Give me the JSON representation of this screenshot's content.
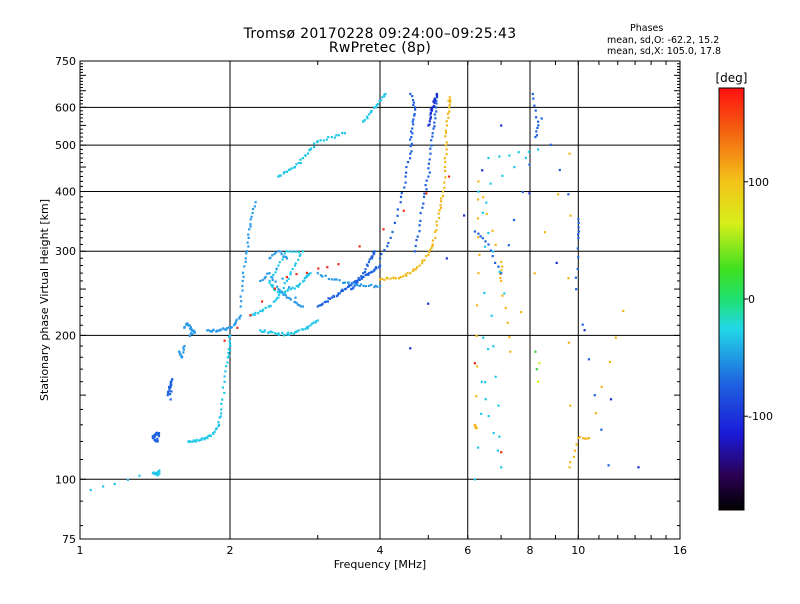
{
  "header": {
    "title": "Tromsø 20170228 09:24:00–09:25:43",
    "subtitle": "RwPretec (8p)"
  },
  "phases": {
    "heading": "Phases",
    "line_o": "mean, sd,O: -62.2, 15.2",
    "line_x": "mean, sd,X: 105.0, 17.8"
  },
  "colorbar": {
    "label": "[deg]",
    "ticks": [
      "100",
      "0",
      "-100"
    ],
    "tick_values": [
      100,
      0,
      -100
    ],
    "range": [
      -180,
      180
    ]
  },
  "colors": {
    "cyan": "#22c8e8",
    "lightblue": "#2a9ae8",
    "blue": "#1f62e0",
    "darkblue": "#1a2fd0",
    "orange": "#f0b81a",
    "darkorange": "#f09010",
    "red": "#ee2c1a",
    "green": "#3fd23a",
    "yellow": "#dce81c",
    "navy": "#0a0a8a"
  },
  "chart_data": {
    "type": "scatter",
    "title": "Tromsø 20170228 09:24:00–09:25:43",
    "subtitle": "RwPretec (8p)",
    "xlabel": "Frequency [MHz]",
    "ylabel": "Stationary phase Virtual Height [km]",
    "xscale": "log",
    "yscale": "log",
    "xlim": [
      1,
      16
    ],
    "ylim": [
      75,
      750
    ],
    "x_ticks": [
      "1",
      "2",
      "4",
      "6",
      "8",
      "10",
      "16"
    ],
    "x_tick_values": [
      1,
      2,
      4,
      6,
      8,
      10,
      16
    ],
    "y_ticks": [
      "75",
      "100",
      "200",
      "300",
      "400",
      "500",
      "600",
      "750"
    ],
    "y_tick_values": [
      75,
      100,
      200,
      300,
      400,
      500,
      600,
      750
    ],
    "grid": true,
    "traces": [
      {
        "color": "cyan",
        "points": [
          [
            1.05,
            95
          ],
          [
            1.4,
            103
          ],
          [
            1.42,
            103
          ],
          [
            1.44,
            104
          ],
          [
            1.43,
            102
          ]
        ]
      },
      {
        "color": "blue",
        "points": [
          [
            1.4,
            122
          ],
          [
            1.42,
            124
          ],
          [
            1.44,
            125
          ],
          [
            1.43,
            120
          ],
          [
            1.41,
            121
          ]
        ]
      },
      {
        "color": "blue",
        "points": [
          [
            1.5,
            150
          ],
          [
            1.51,
            155
          ],
          [
            1.52,
            158
          ],
          [
            1.53,
            162
          ],
          [
            1.52,
            147
          ]
        ]
      },
      {
        "color": "lightblue",
        "points": [
          [
            1.58,
            185
          ],
          [
            1.6,
            180
          ],
          [
            1.62,
            190
          ]
        ]
      },
      {
        "color": "lightblue",
        "points": [
          [
            1.62,
            208
          ],
          [
            1.64,
            212
          ],
          [
            1.66,
            210
          ],
          [
            1.68,
            205
          ],
          [
            1.7,
            203
          ],
          [
            1.66,
            200
          ]
        ]
      },
      {
        "color": "cyan",
        "points": [
          [
            1.65,
            120
          ],
          [
            1.7,
            120
          ],
          [
            1.75,
            121
          ],
          [
            1.8,
            122
          ],
          [
            1.85,
            125
          ],
          [
            1.9,
            130
          ],
          [
            1.92,
            140
          ],
          [
            1.95,
            160
          ],
          [
            1.98,
            180
          ],
          [
            2.0,
            190
          ],
          [
            2.0,
            200
          ]
        ]
      },
      {
        "color": "lightblue",
        "points": [
          [
            1.8,
            205
          ],
          [
            1.85,
            205
          ],
          [
            1.9,
            205
          ],
          [
            1.95,
            206
          ],
          [
            2.0,
            207
          ],
          [
            2.05,
            212
          ],
          [
            2.1,
            220
          ]
        ]
      },
      {
        "color": "lightblue",
        "points": [
          [
            2.1,
            230
          ],
          [
            2.12,
            260
          ],
          [
            2.15,
            290
          ],
          [
            2.18,
            320
          ],
          [
            2.2,
            350
          ],
          [
            2.25,
            380
          ]
        ]
      },
      {
        "color": "cyan",
        "points": [
          [
            2.2,
            220
          ],
          [
            2.3,
            225
          ],
          [
            2.4,
            230
          ],
          [
            2.5,
            240
          ],
          [
            2.6,
            260
          ],
          [
            2.7,
            280
          ],
          [
            2.8,
            300
          ],
          [
            2.6,
            300
          ],
          [
            2.5,
            280
          ],
          [
            2.4,
            260
          ],
          [
            2.45,
            250
          ],
          [
            2.55,
            245
          ],
          [
            2.65,
            250
          ],
          [
            2.75,
            255
          ],
          [
            2.85,
            265
          ],
          [
            2.9,
            270
          ]
        ]
      },
      {
        "color": "cyan",
        "points": [
          [
            2.3,
            205
          ],
          [
            2.4,
            203
          ],
          [
            2.5,
            202
          ],
          [
            2.6,
            201
          ],
          [
            2.7,
            203
          ],
          [
            2.8,
            206
          ],
          [
            2.9,
            210
          ],
          [
            3.0,
            215
          ]
        ]
      },
      {
        "color": "lightblue",
        "points": [
          [
            2.3,
            260
          ],
          [
            2.4,
            270
          ],
          [
            2.5,
            250
          ],
          [
            2.6,
            240
          ],
          [
            2.7,
            235
          ],
          [
            2.8,
            230
          ],
          [
            2.4,
            290
          ],
          [
            2.5,
            300
          ],
          [
            2.6,
            290
          ]
        ]
      },
      {
        "color": "cyan",
        "points": [
          [
            2.5,
            430
          ],
          [
            2.6,
            440
          ],
          [
            2.7,
            450
          ],
          [
            2.8,
            470
          ],
          [
            2.9,
            490
          ],
          [
            3.0,
            510
          ],
          [
            3.2,
            520
          ],
          [
            3.4,
            530
          ]
        ]
      },
      {
        "color": "blue",
        "points": [
          [
            3.0,
            230
          ],
          [
            3.1,
            235
          ],
          [
            3.2,
            240
          ],
          [
            3.3,
            245
          ],
          [
            3.4,
            250
          ],
          [
            3.5,
            255
          ],
          [
            3.6,
            260
          ],
          [
            3.7,
            265
          ],
          [
            3.8,
            270
          ],
          [
            3.9,
            275
          ],
          [
            4.0,
            280
          ]
        ]
      },
      {
        "color": "blue",
        "points": [
          [
            3.5,
            250
          ],
          [
            3.6,
            258
          ],
          [
            3.7,
            270
          ],
          [
            3.8,
            285
          ],
          [
            3.9,
            300
          ],
          [
            3.85,
            290
          ]
        ]
      },
      {
        "color": "lightblue",
        "points": [
          [
            3.0,
            270
          ],
          [
            3.2,
            262
          ],
          [
            3.4,
            258
          ],
          [
            3.6,
            255
          ],
          [
            3.8,
            254
          ],
          [
            4.0,
            254
          ]
        ]
      },
      {
        "color": "orange",
        "points": [
          [
            4.0,
            262
          ],
          [
            4.2,
            263
          ],
          [
            4.4,
            265
          ],
          [
            4.6,
            270
          ],
          [
            4.8,
            280
          ],
          [
            5.0,
            295
          ],
          [
            5.1,
            310
          ],
          [
            5.2,
            340
          ],
          [
            5.3,
            370
          ],
          [
            5.35,
            400
          ],
          [
            5.4,
            450
          ],
          [
            5.42,
            500
          ],
          [
            5.45,
            550
          ],
          [
            5.5,
            600
          ],
          [
            5.52,
            630
          ]
        ]
      },
      {
        "color": "blue",
        "points": [
          [
            4.0,
            290
          ],
          [
            4.2,
            320
          ],
          [
            4.4,
            380
          ],
          [
            4.5,
            430
          ],
          [
            4.6,
            480
          ],
          [
            4.62,
            520
          ],
          [
            4.65,
            560
          ],
          [
            4.7,
            600
          ],
          [
            4.6,
            640
          ]
        ]
      },
      {
        "color": "blue",
        "points": [
          [
            4.7,
            300
          ],
          [
            4.8,
            340
          ],
          [
            4.9,
            390
          ],
          [
            5.0,
            430
          ],
          [
            5.05,
            480
          ],
          [
            5.1,
            530
          ],
          [
            5.15,
            580
          ],
          [
            5.2,
            630
          ]
        ]
      },
      {
        "color": "cyan",
        "points": [
          [
            3.7,
            560
          ],
          [
            3.8,
            580
          ],
          [
            3.9,
            600
          ],
          [
            4.0,
            620
          ],
          [
            4.1,
            640
          ]
        ]
      },
      {
        "color": "darkblue",
        "points": [
          [
            5.0,
            550
          ],
          [
            5.05,
            580
          ],
          [
            5.1,
            600
          ],
          [
            5.15,
            620
          ],
          [
            5.2,
            640
          ]
        ]
      },
      {
        "color": "red",
        "points": [
          [
            1.95,
            195
          ],
          [
            2.6,
            265
          ],
          [
            3.3,
            282
          ],
          [
            5.5,
            430
          ]
        ]
      },
      {
        "color": "red",
        "points": [
          [
            6.2,
            175
          ],
          [
            7.0,
            114
          ]
        ]
      },
      {
        "color": "orange",
        "points": [
          [
            6.2,
            130
          ],
          [
            6.25,
            128
          ],
          [
            6.3,
            270
          ],
          [
            6.3,
            420
          ],
          [
            7.0,
            285
          ],
          [
            7.0,
            260
          ],
          [
            7.3,
            185
          ],
          [
            9.6,
            480
          ],
          [
            9.6,
            106
          ],
          [
            10.0,
            122
          ],
          [
            10.5,
            122
          ],
          [
            12.3,
            225
          ]
        ]
      },
      {
        "color": "green",
        "points": [
          [
            8.2,
            185
          ],
          [
            8.25,
            170
          ]
        ]
      },
      {
        "color": "yellow",
        "points": [
          [
            8.3,
            160
          ],
          [
            8.35,
            175
          ]
        ]
      },
      {
        "color": "blue",
        "points": [
          [
            6.2,
            330
          ],
          [
            6.6,
            310
          ],
          [
            7.0,
            270
          ],
          [
            8.2,
            520
          ],
          [
            8.3,
            560
          ],
          [
            8.1,
            640
          ],
          [
            10.0,
            350
          ],
          [
            10.0,
            320
          ],
          [
            9.9,
            250
          ],
          [
            11.5,
            107
          ]
        ]
      },
      {
        "color": "darkblue",
        "points": [
          [
            4.6,
            188
          ],
          [
            7.0,
            550
          ],
          [
            13.2,
            106
          ]
        ]
      },
      {
        "color": "cyan",
        "points": [
          [
            6.2,
            100
          ],
          [
            6.7,
            220
          ],
          [
            7.0,
            106
          ],
          [
            6.4,
            160
          ],
          [
            6.6,
            470
          ],
          [
            8.3,
            490
          ],
          [
            6.3,
            400
          ],
          [
            7.1,
            245
          ]
        ]
      }
    ]
  }
}
